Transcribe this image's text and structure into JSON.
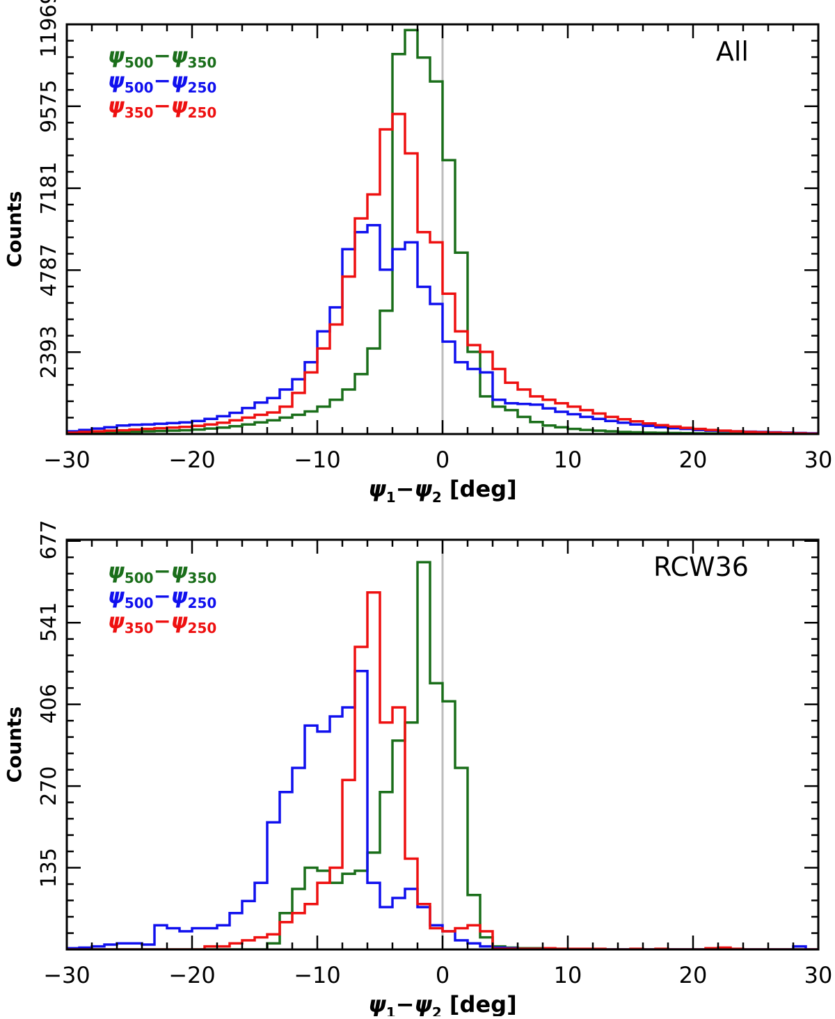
{
  "chart_data": [
    {
      "type": "histogram",
      "panel_label": "All",
      "xlabel": {
        "psi": "ψ",
        "sub1": "1",
        "minus": "−",
        "sub2": "2",
        "unit": " [deg]"
      },
      "ylabel": "Counts",
      "xlim": [
        -30,
        30
      ],
      "ylim": [
        0,
        11969
      ],
      "xticks": [
        -30,
        -20,
        -10,
        0,
        10,
        20,
        30
      ],
      "xtick_labels": [
        "−30",
        "−20",
        "−10",
        "0",
        "10",
        "20",
        "30"
      ],
      "yticks": [
        2393,
        4787,
        7181,
        9575,
        11969
      ],
      "ytick_labels": [
        "2393",
        "4787",
        "7181",
        "9575",
        "11969"
      ],
      "vline": 0,
      "bin_edges": [
        -30,
        -29,
        -28,
        -27,
        -26,
        -25,
        -24,
        -23,
        -22,
        -21,
        -20,
        -19,
        -18,
        -17,
        -16,
        -15,
        -14,
        -13,
        -12,
        -11,
        -10,
        -9,
        -8,
        -7,
        -6,
        -5,
        -4,
        -3,
        -2,
        -1,
        0,
        1,
        2,
        3,
        4,
        5,
        6,
        7,
        8,
        9,
        10,
        11,
        12,
        13,
        14,
        15,
        16,
        17,
        18,
        19,
        20,
        21,
        22,
        23,
        24,
        25,
        26,
        27,
        28,
        29,
        30
      ],
      "series": [
        {
          "name": "ψ500−ψ350",
          "legend": {
            "a": "500",
            "b": "350"
          },
          "color": "#1a6e1a",
          "values": [
            20,
            30,
            40,
            50,
            60,
            70,
            80,
            90,
            100,
            110,
            130,
            160,
            190,
            230,
            280,
            340,
            400,
            480,
            560,
            660,
            800,
            1000,
            1300,
            1750,
            2500,
            3600,
            11100,
            11800,
            11000,
            10300,
            8000,
            5300,
            2400,
            1100,
            800,
            700,
            500,
            350,
            250,
            200,
            150,
            120,
            100,
            80,
            60,
            50,
            40,
            35,
            30,
            25,
            20,
            18,
            16,
            14,
            12,
            10,
            9,
            8,
            7,
            6
          ]
        },
        {
          "name": "ψ500−ψ250",
          "legend": {
            "a": "500",
            "b": "250"
          },
          "color": "#1010ee",
          "values": [
            80,
            120,
            160,
            200,
            250,
            270,
            280,
            300,
            320,
            340,
            380,
            440,
            520,
            620,
            760,
            920,
            1050,
            1300,
            1600,
            2100,
            3000,
            3700,
            5400,
            5900,
            6100,
            4800,
            5400,
            5600,
            4300,
            3800,
            2700,
            2100,
            1900,
            1800,
            1000,
            900,
            880,
            860,
            750,
            650,
            580,
            500,
            440,
            380,
            330,
            280,
            240,
            200,
            170,
            150,
            120,
            100,
            90,
            80,
            70,
            60,
            50,
            40,
            30,
            20
          ]
        },
        {
          "name": "ψ350−ψ250",
          "legend": {
            "a": "350",
            "b": "250"
          },
          "color": "#ee1010",
          "values": [
            40,
            60,
            80,
            100,
            110,
            130,
            150,
            170,
            190,
            210,
            240,
            280,
            330,
            400,
            480,
            560,
            630,
            800,
            1200,
            1800,
            2500,
            3200,
            4600,
            6300,
            7000,
            8900,
            9350,
            8200,
            5900,
            5600,
            4100,
            3000,
            2600,
            2400,
            1900,
            1500,
            1300,
            1100,
            1000,
            900,
            800,
            700,
            600,
            500,
            430,
            370,
            310,
            260,
            220,
            180,
            150,
            120,
            100,
            80,
            60,
            50,
            40,
            30,
            20,
            10
          ]
        }
      ]
    },
    {
      "type": "histogram",
      "panel_label": "RCW36",
      "xlabel": {
        "psi": "ψ",
        "sub1": "1",
        "minus": "−",
        "sub2": "2",
        "unit": " [deg]"
      },
      "ylabel": "Counts",
      "xlim": [
        -30,
        30
      ],
      "ylim": [
        0,
        677
      ],
      "xticks": [
        -30,
        -20,
        -10,
        0,
        10,
        20,
        30
      ],
      "xtick_labels": [
        "−30",
        "−20",
        "−10",
        "0",
        "10",
        "20",
        "30"
      ],
      "yticks": [
        135,
        270,
        406,
        541,
        677
      ],
      "ytick_labels": [
        "135",
        "270",
        "406",
        "541",
        "677"
      ],
      "vline": 0,
      "bin_edges": [
        -30,
        -29,
        -28,
        -27,
        -26,
        -25,
        -24,
        -23,
        -22,
        -21,
        -20,
        -19,
        -18,
        -17,
        -16,
        -15,
        -14,
        -13,
        -12,
        -11,
        -10,
        -9,
        -8,
        -7,
        -6,
        -5,
        -4,
        -3,
        -2,
        -1,
        0,
        1,
        2,
        3,
        4,
        5,
        6,
        7,
        8,
        9,
        10,
        11,
        12,
        13,
        14,
        15,
        16,
        17,
        18,
        19,
        20,
        21,
        22,
        23,
        24,
        25,
        26,
        27,
        28,
        29,
        30
      ],
      "series": [
        {
          "name": "ψ500−ψ350",
          "legend": {
            "a": "500",
            "b": "350"
          },
          "color": "#1a6e1a",
          "values": [
            0,
            0,
            0,
            0,
            0,
            0,
            0,
            0,
            0,
            0,
            0,
            0,
            0,
            0,
            0,
            0,
            10,
            60,
            100,
            135,
            130,
            110,
            125,
            130,
            160,
            260,
            345,
            375,
            640,
            440,
            410,
            300,
            90,
            20,
            5,
            3,
            2,
            2,
            1,
            1,
            0,
            0,
            0,
            0,
            0,
            0,
            0,
            0,
            0,
            0,
            0,
            0,
            0,
            0,
            0,
            0,
            0,
            0,
            0,
            0
          ]
        },
        {
          "name": "ψ500−ψ250",
          "legend": {
            "a": "500",
            "b": "250"
          },
          "color": "#1010ee",
          "values": [
            2,
            3,
            5,
            8,
            10,
            10,
            8,
            40,
            35,
            30,
            35,
            35,
            40,
            60,
            80,
            110,
            210,
            260,
            300,
            370,
            360,
            385,
            400,
            460,
            110,
            70,
            85,
            100,
            70,
            40,
            30,
            15,
            10,
            5,
            3,
            2,
            1,
            1,
            1,
            0,
            0,
            0,
            0,
            0,
            0,
            0,
            0,
            0,
            0,
            0,
            0,
            0,
            0,
            0,
            0,
            0,
            0,
            0,
            5,
            0
          ]
        },
        {
          "name": "ψ350−ψ250",
          "legend": {
            "a": "350",
            "b": "250"
          },
          "color": "#ee1010",
          "values": [
            0,
            0,
            0,
            0,
            0,
            0,
            0,
            0,
            0,
            0,
            0,
            5,
            5,
            10,
            15,
            20,
            25,
            45,
            60,
            75,
            110,
            135,
            280,
            500,
            590,
            375,
            400,
            150,
            75,
            35,
            30,
            35,
            40,
            30,
            1,
            1,
            1,
            1,
            2,
            1,
            1,
            1,
            1,
            0,
            0,
            1,
            0,
            1,
            0,
            0,
            0,
            2,
            3,
            1,
            0,
            0,
            0,
            0,
            0,
            0
          ]
        }
      ]
    }
  ]
}
